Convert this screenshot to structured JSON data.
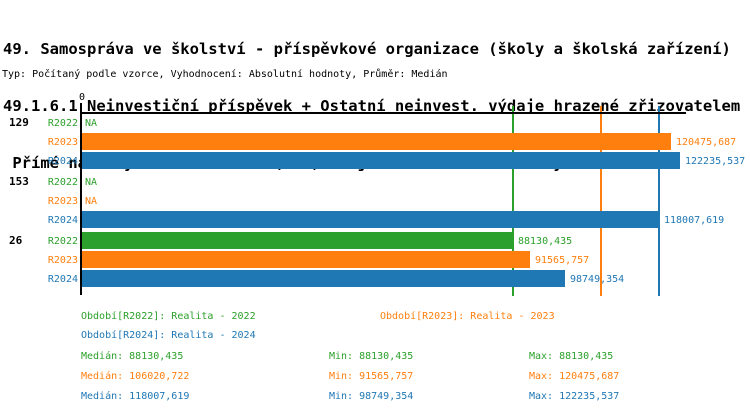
{
  "title": {
    "line1": "49. Samospráva ve školství - příspěvkové organizace (školy a školská zařízení)",
    "line2": "49.1.6.1 Neinvestiční příspěvek + Ostatní neinvest. výdaje hrazené zřizovatelem +",
    "line3": " Přímé náklady na vzdělávání (NIV) na jedno dítě v MŠ v celých Kč"
  },
  "meta": "Typ: Počítaný podle vzorce, Vyhodnocení: Absolutní hodnoty, Průměr: Medián",
  "chart_data": {
    "type": "bar",
    "orientation": "horizontal",
    "x_axis": {
      "zero_label": "0",
      "min": 0,
      "max": 122235.537
    },
    "na_label": "NA",
    "series": [
      {
        "id": "R2022",
        "name": "Realita - 2022",
        "color": "#2ca02c",
        "median": 88130.435,
        "min": 88130.435,
        "max": 88130.435
      },
      {
        "id": "R2023",
        "name": "Realita - 2023",
        "color": "#ff7f0e",
        "median": 106020.722,
        "min": 91565.757,
        "max": 120475.687
      },
      {
        "id": "R2024",
        "name": "Realita - 2024",
        "color": "#1f77b4",
        "median": 118007.619,
        "min": 98749.354,
        "max": 122235.537
      }
    ],
    "groups": [
      {
        "label": "129",
        "bars": [
          {
            "series": "R2022",
            "value": null,
            "display": "NA"
          },
          {
            "series": "R2023",
            "value": 120475.687,
            "display": "120475,687"
          },
          {
            "series": "R2024",
            "value": 122235.537,
            "display": "122235,537"
          }
        ]
      },
      {
        "label": "153",
        "bars": [
          {
            "series": "R2022",
            "value": null,
            "display": "NA"
          },
          {
            "series": "R2023",
            "value": null,
            "display": "NA"
          },
          {
            "series": "R2024",
            "value": 118007.619,
            "display": "118007,619"
          }
        ]
      },
      {
        "label": "26",
        "bars": [
          {
            "series": "R2022",
            "value": 88130.435,
            "display": "88130,435"
          },
          {
            "series": "R2023",
            "value": 91565.757,
            "display": "91565,757"
          },
          {
            "series": "R2024",
            "value": 98749.354,
            "display": "98749,354"
          }
        ]
      }
    ],
    "median_markers": [
      88130.435,
      106020.722,
      118007.619
    ]
  },
  "legend": {
    "items": [
      {
        "series": "R2022",
        "label": "Období[R2022]: Realita - 2022"
      },
      {
        "series": "R2023",
        "label": "Období[R2023]: Realita - 2023"
      },
      {
        "series": "R2024",
        "label": "Období[R2024]: Realita - 2024"
      }
    ]
  },
  "stats": {
    "rows": [
      {
        "series": "R2022",
        "median": "Medián: 88130,435",
        "min": "Min: 88130,435",
        "max": "Max: 88130,435"
      },
      {
        "series": "R2023",
        "median": "Medián: 106020,722",
        "min": "Min: 91565,757",
        "max": "Max: 120475,687"
      },
      {
        "series": "R2024",
        "median": "Medián: 118007,619",
        "min": "Min: 98749,354",
        "max": "Max: 122235,537"
      }
    ]
  }
}
